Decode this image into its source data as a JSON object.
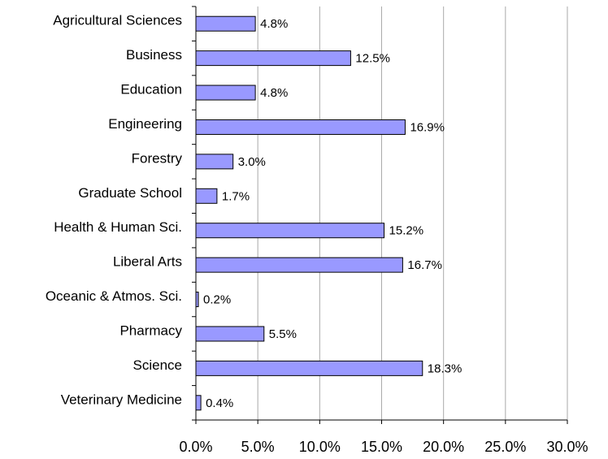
{
  "chart_data": {
    "type": "bar",
    "orientation": "horizontal",
    "categories": [
      "Agricultural Sciences",
      "Business",
      "Education",
      "Engineering",
      "Forestry",
      "Graduate School",
      "Health & Human Sci.",
      "Liberal Arts",
      "Oceanic & Atmos. Sci.",
      "Pharmacy",
      "Science",
      "Veterinary Medicine"
    ],
    "values": [
      4.8,
      12.5,
      4.8,
      16.9,
      3.0,
      1.7,
      15.2,
      16.7,
      0.2,
      5.5,
      18.3,
      0.4
    ],
    "value_labels": [
      "4.8%",
      "12.5%",
      "4.8%",
      "16.9%",
      "3.0%",
      "1.7%",
      "15.2%",
      "16.7%",
      "0.2%",
      "5.5%",
      "18.3%",
      "0.4%"
    ],
    "color": "#9999ff",
    "xlim": [
      0,
      30
    ],
    "xticks": [
      {
        "value": 0,
        "label": "0.0%"
      },
      {
        "value": 5,
        "label": "5.0%"
      },
      {
        "value": 10,
        "label": "10.0%"
      },
      {
        "value": 15,
        "label": "15.0%"
      },
      {
        "value": 20,
        "label": "20.0%"
      },
      {
        "value": 25,
        "label": "25.0%"
      },
      {
        "value": 30,
        "label": "30.0%"
      }
    ],
    "grid": true
  }
}
